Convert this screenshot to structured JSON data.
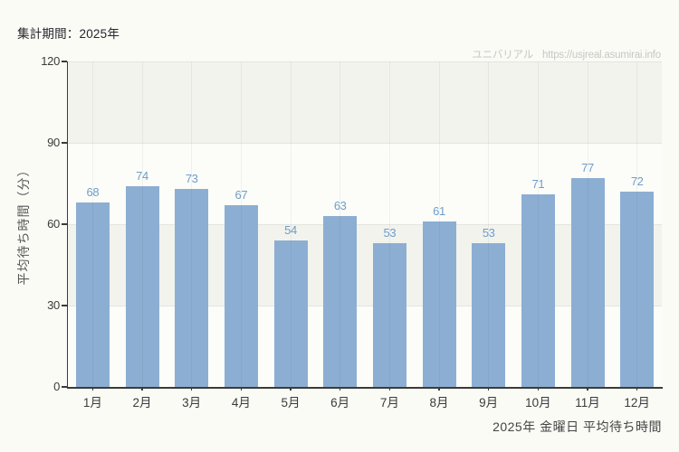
{
  "page": {
    "header": "集計期間：2025年",
    "watermark": {
      "brand": "ユニバリアル",
      "url": "https://usjreal.asumirai.info"
    },
    "footer": "2025年 金曜日 平均待ち時間"
  },
  "chart_data": {
    "type": "bar",
    "title": "",
    "categories": [
      "1月",
      "2月",
      "3月",
      "4月",
      "5月",
      "6月",
      "7月",
      "8月",
      "9月",
      "10月",
      "11月",
      "12月"
    ],
    "values": [
      68,
      74,
      73,
      67,
      54,
      63,
      53,
      61,
      53,
      71,
      77,
      72
    ],
    "xlabel": "",
    "ylabel": "平均待ち時間（分）",
    "ylim": [
      0,
      120
    ],
    "yticks": [
      0,
      30,
      60,
      90,
      120
    ],
    "legend": "none",
    "grid": "vertical-gridline-per-category, alternating-horizontal-bands",
    "colors": {
      "bar": "#8caed2",
      "value_label": "#6e9dcb",
      "band_gray": "#f2f3ed",
      "band_white": "#fcfdf8",
      "band_border": "#e4e5df",
      "axis": "#3b3b3b",
      "watermark": "#c6c7c3",
      "background": "#fafbf5"
    }
  }
}
